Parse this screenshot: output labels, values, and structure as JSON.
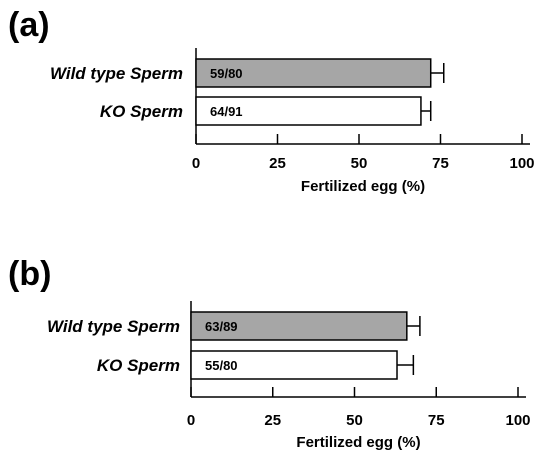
{
  "chart_data": [
    {
      "panel_label": "(a)",
      "type": "bar",
      "orientation": "horizontal",
      "categories": [
        "Wild  type Sperm",
        "KO Sperm"
      ],
      "values": [
        72,
        69
      ],
      "errors": [
        4,
        3
      ],
      "bar_labels": [
        "59/80",
        "64/91"
      ],
      "bar_colors": [
        "#a6a6a6",
        "#ffffff"
      ],
      "xlabel": "Fertilized egg (%)",
      "xlim": [
        0,
        100
      ],
      "xticks": [
        0,
        25,
        50,
        75,
        100
      ],
      "grid": false,
      "error_bars": true
    },
    {
      "panel_label": "(b)",
      "type": "bar",
      "orientation": "horizontal",
      "categories": [
        "Wild type Sperm",
        "KO Sperm"
      ],
      "values": [
        66,
        63
      ],
      "errors": [
        4,
        5
      ],
      "bar_labels": [
        "63/89",
        "55/80"
      ],
      "bar_colors": [
        "#a6a6a6",
        "#ffffff"
      ],
      "xlabel": "Fertilized egg (%)",
      "xlim": [
        0,
        100
      ],
      "xticks": [
        0,
        25,
        50,
        75,
        100
      ],
      "grid": false,
      "error_bars": true
    }
  ]
}
